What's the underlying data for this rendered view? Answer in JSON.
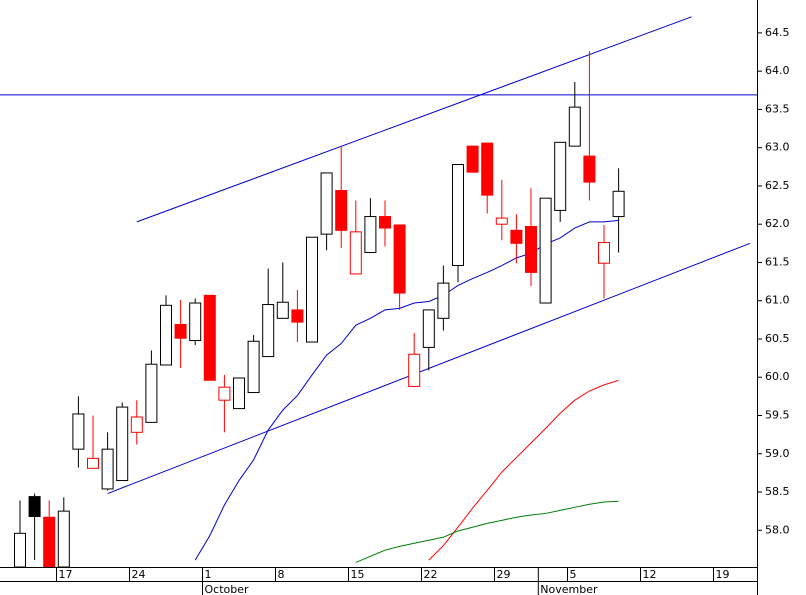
{
  "chart_data": {
    "type": "candlestick",
    "categories": [
      null,
      null,
      null,
      "17",
      null,
      null,
      null,
      null,
      "24",
      null,
      null,
      null,
      null,
      "1",
      null,
      null,
      null,
      null,
      "8",
      null,
      null,
      null,
      null,
      "15",
      null,
      null,
      null,
      null,
      "22",
      null,
      null,
      null,
      null,
      "29",
      null,
      null,
      null,
      null,
      "5",
      null,
      null,
      null,
      null,
      "12",
      null,
      null,
      null,
      null,
      "19",
      null,
      null
    ],
    "month_labels": [
      "October",
      "November"
    ],
    "open": [
      57.52,
      58.44,
      58.17,
      57.52,
      59.06,
      58.81,
      58.54,
      58.65,
      59.28,
      59.41,
      60.16,
      60.69,
      60.48,
      61.07,
      59.7,
      59.59,
      59.8,
      60.27,
      60.77,
      60.88,
      60.46,
      61.87,
      62.44,
      61.35,
      61.63,
      62.1,
      61.99,
      59.88,
      60.39,
      60.77,
      61.46,
      63.02,
      63.06,
      62.0,
      61.92,
      61.97,
      60.97,
      62.18,
      63.02,
      62.89,
      61.49,
      62.1,
      null,
      null,
      null,
      null,
      null,
      null,
      null,
      null,
      null
    ],
    "high": [
      58.39,
      58.48,
      58.39,
      58.43,
      59.75,
      59.5,
      59.28,
      59.67,
      59.7,
      60.35,
      61.07,
      61.01,
      61.03,
      61.07,
      60.03,
      59.99,
      60.55,
      61.42,
      61.5,
      61.14,
      61.83,
      62.67,
      63.02,
      62.31,
      62.34,
      62.31,
      61.99,
      60.58,
      60.88,
      61.46,
      62.78,
      63.02,
      63.06,
      62.58,
      62.13,
      62.47,
      62.34,
      63.07,
      63.86,
      64.26,
      61.99,
      62.73,
      null,
      null,
      null,
      null,
      null,
      null,
      null,
      null,
      null
    ],
    "low": [
      57.52,
      57.61,
      57.52,
      57.52,
      58.82,
      58.81,
      58.52,
      58.65,
      59.12,
      59.41,
      60.16,
      60.12,
      60.42,
      59.96,
      59.28,
      59.59,
      59.8,
      60.27,
      60.77,
      60.46,
      60.46,
      61.66,
      61.69,
      61.35,
      61.63,
      61.71,
      60.88,
      59.88,
      60.09,
      60.61,
      61.24,
      62.68,
      62.14,
      61.79,
      61.49,
      61.19,
      60.97,
      62.03,
      63.02,
      62.31,
      61.03,
      61.63,
      null,
      null,
      null,
      null,
      null,
      null,
      null,
      null,
      null
    ],
    "close": [
      57.96,
      58.18,
      57.52,
      58.25,
      59.52,
      58.94,
      59.06,
      59.61,
      59.48,
      60.17,
      60.94,
      60.51,
      60.97,
      59.96,
      59.87,
      59.99,
      60.47,
      60.95,
      60.98,
      60.72,
      61.83,
      62.67,
      61.92,
      61.9,
      62.1,
      61.95,
      61.1,
      60.3,
      60.88,
      61.23,
      62.78,
      62.68,
      62.38,
      62.08,
      61.75,
      61.37,
      62.34,
      63.07,
      63.53,
      62.55,
      61.76,
      62.43,
      null,
      null,
      null,
      null,
      null,
      null,
      null,
      null,
      null
    ],
    "up_color": "#000000",
    "down_color": "#ff0000",
    "series": [
      {
        "color": "#0000cc",
        "values": [
          null,
          null,
          null,
          null,
          null,
          null,
          null,
          null,
          null,
          null,
          null,
          null,
          57.61,
          57.93,
          58.33,
          58.65,
          58.92,
          59.31,
          59.57,
          59.76,
          60.03,
          60.29,
          60.44,
          60.68,
          60.77,
          60.88,
          60.9,
          60.97,
          60.99,
          61.07,
          61.2,
          61.29,
          61.37,
          61.46,
          61.56,
          61.62,
          61.74,
          61.82,
          61.95,
          62.03,
          62.03,
          62.05,
          null,
          null,
          null,
          null,
          null,
          null,
          null,
          null,
          null
        ]
      },
      {
        "color": "#ff0000",
        "values": [
          null,
          null,
          null,
          null,
          null,
          null,
          null,
          null,
          null,
          null,
          null,
          null,
          null,
          null,
          null,
          null,
          null,
          null,
          null,
          null,
          null,
          null,
          null,
          null,
          null,
          null,
          null,
          null,
          57.61,
          57.8,
          58.04,
          58.29,
          58.52,
          58.76,
          58.95,
          59.14,
          59.33,
          59.53,
          59.7,
          59.82,
          59.9,
          59.96,
          null,
          null,
          null,
          null,
          null,
          null,
          null,
          null,
          null
        ]
      },
      {
        "color": "#008000",
        "values": [
          null,
          null,
          null,
          null,
          null,
          null,
          null,
          null,
          null,
          null,
          null,
          null,
          null,
          null,
          null,
          null,
          null,
          null,
          null,
          null,
          null,
          null,
          null,
          57.58,
          57.66,
          57.74,
          57.79,
          57.83,
          57.87,
          57.91,
          57.99,
          58.04,
          58.09,
          58.13,
          58.17,
          58.2,
          58.22,
          58.26,
          58.3,
          58.34,
          58.37,
          58.38,
          null,
          null,
          null,
          null,
          null,
          null,
          null,
          null,
          null
        ]
      }
    ],
    "trendlines": [
      {
        "color": "#0000cc",
        "start": 8,
        "end": 46,
        "values": [
          62.03,
          64.71
        ]
      },
      {
        "color": "#0000cc",
        "start": 6,
        "end": 50,
        "values": [
          58.48,
          61.75
        ]
      }
    ],
    "hline": {
      "color": "#0000cc",
      "value": 63.69
    },
    "ylim": [
      57.52,
      64.93
    ],
    "yticks": [
      {
        "value": 58,
        "label": "58.0"
      },
      {
        "value": 58.5,
        "label": "58.5"
      },
      {
        "value": 59,
        "label": "59.0"
      },
      {
        "value": 59.5,
        "label": "59.5"
      },
      {
        "value": 60,
        "label": "60.0"
      },
      {
        "value": 60.5,
        "label": "60.5"
      },
      {
        "value": 61,
        "label": "61.0"
      },
      {
        "value": 61.5,
        "label": "61.5"
      },
      {
        "value": 62,
        "label": "62.0"
      },
      {
        "value": 62.5,
        "label": "62.5"
      },
      {
        "value": 63,
        "label": "63.0"
      },
      {
        "value": 63.5,
        "label": "63.5"
      },
      {
        "value": 64,
        "label": "64.0"
      },
      {
        "value": 64.5,
        "label": "64.5"
      }
    ]
  }
}
